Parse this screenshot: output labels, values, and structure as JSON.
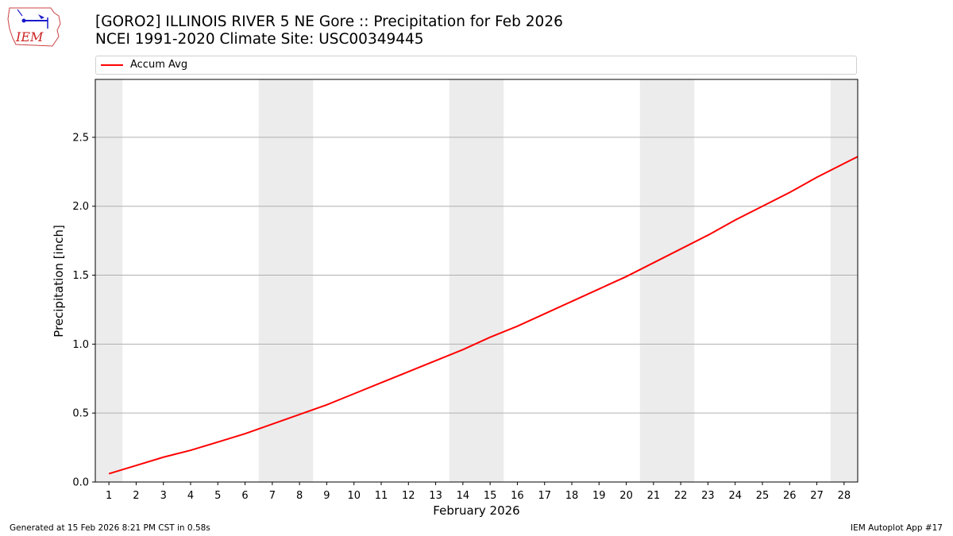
{
  "header": {
    "title_line1": "[GORO2] ILLINOIS RIVER 5 NE Gore :: Precipitation for Feb 2026",
    "title_line2": "NCEI 1991-2020 Climate Site: USC00349445",
    "logo_text": "IEM"
  },
  "legend": {
    "items": [
      {
        "label": "Accum Avg",
        "color": "#ff0000"
      }
    ]
  },
  "footer": {
    "generated": "Generated at 15 Feb 2026 8:21 PM CST in 0.58s",
    "app": "IEM Autoplot App #17"
  },
  "chart_data": {
    "type": "line",
    "title": "[GORO2] ILLINOIS RIVER 5 NE Gore :: Precipitation for Feb 2026",
    "subtitle": "NCEI 1991-2020 Climate Site: USC00349445",
    "xlabel": "February 2026",
    "ylabel": "Precipitation [inch]",
    "x": [
      1,
      2,
      3,
      4,
      5,
      6,
      7,
      8,
      9,
      10,
      11,
      12,
      13,
      14,
      15,
      16,
      17,
      18,
      19,
      20,
      21,
      22,
      23,
      24,
      25,
      26,
      27,
      28
    ],
    "series": [
      {
        "name": "Accum Avg",
        "color": "#ff0000",
        "values": [
          0.06,
          0.12,
          0.18,
          0.23,
          0.29,
          0.35,
          0.42,
          0.49,
          0.56,
          0.64,
          0.72,
          0.8,
          0.88,
          0.96,
          1.05,
          1.13,
          1.22,
          1.31,
          1.4,
          1.49,
          1.59,
          1.69,
          1.79,
          1.9,
          2.0,
          2.1,
          2.21,
          2.31
        ]
      }
    ],
    "end_value_at_axis_edge": 2.36,
    "xlim": [
      0.5,
      28.5
    ],
    "ylim": [
      0,
      2.92
    ],
    "yticks": [
      0.0,
      0.5,
      1.0,
      1.5,
      2.0,
      2.5
    ],
    "ytick_labels": [
      "0.0",
      "0.5",
      "1.0",
      "1.5",
      "2.0",
      "2.5"
    ],
    "xtick_labels": [
      "1",
      "2",
      "3",
      "4",
      "5",
      "6",
      "7",
      "8",
      "9",
      "10",
      "11",
      "12",
      "13",
      "14",
      "15",
      "16",
      "17",
      "18",
      "19",
      "20",
      "21",
      "22",
      "23",
      "24",
      "25",
      "26",
      "27",
      "28"
    ],
    "weekend_shading": [
      [
        0.5,
        1.5
      ],
      [
        6.5,
        8.5
      ],
      [
        13.5,
        15.5
      ],
      [
        20.5,
        22.5
      ],
      [
        27.5,
        28.5
      ]
    ],
    "grid": "horizontal",
    "legend_position": "top"
  }
}
